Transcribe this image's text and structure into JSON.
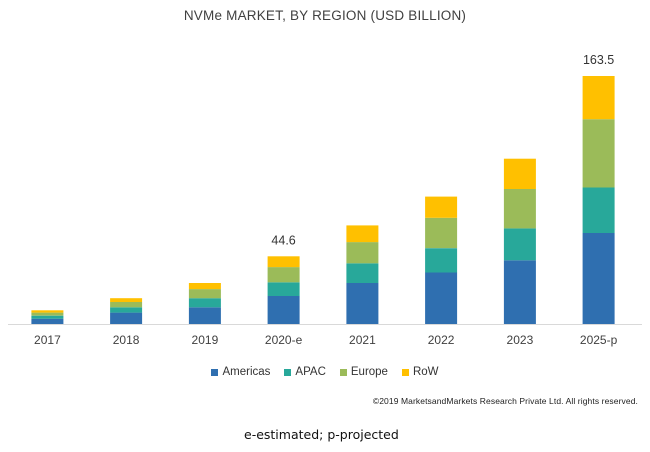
{
  "chart_data": {
    "type": "bar",
    "stacked": true,
    "title": "NVMe MARKET, BY REGION (USD BILLION)",
    "categories": [
      "2017",
      "2018",
      "2019",
      "2020-e",
      "2021",
      "2022",
      "2023",
      "2025-p"
    ],
    "series": [
      {
        "name": "Americas",
        "color": "#2f6fb0",
        "values": [
          3.5,
          7.5,
          11.0,
          18.5,
          27.0,
          34.0,
          42.0,
          60.0
        ]
      },
      {
        "name": "APAC",
        "color": "#28a89a",
        "values": [
          2.0,
          3.5,
          6.0,
          9.0,
          13.0,
          16.0,
          21.0,
          30.0
        ]
      },
      {
        "name": "Europe",
        "color": "#9bbb59",
        "values": [
          2.0,
          3.5,
          6.0,
          10.0,
          14.0,
          20.0,
          26.0,
          45.0
        ]
      },
      {
        "name": "RoW",
        "color": "#ffc000",
        "values": [
          1.5,
          2.5,
          4.0,
          7.1,
          11.0,
          14.0,
          20.0,
          28.5
        ]
      }
    ],
    "data_labels": [
      {
        "category": "2020-e",
        "text": "44.6"
      },
      {
        "category": "2025-p",
        "text": "163.5"
      }
    ],
    "ylim": [
      0,
      163.5
    ],
    "grid": false,
    "legend_position": "bottom"
  },
  "copyright": "©2019 MarketsandMarkets Research Private Ltd. All rights reserved.",
  "footnote": "e-estimated; p-projected"
}
